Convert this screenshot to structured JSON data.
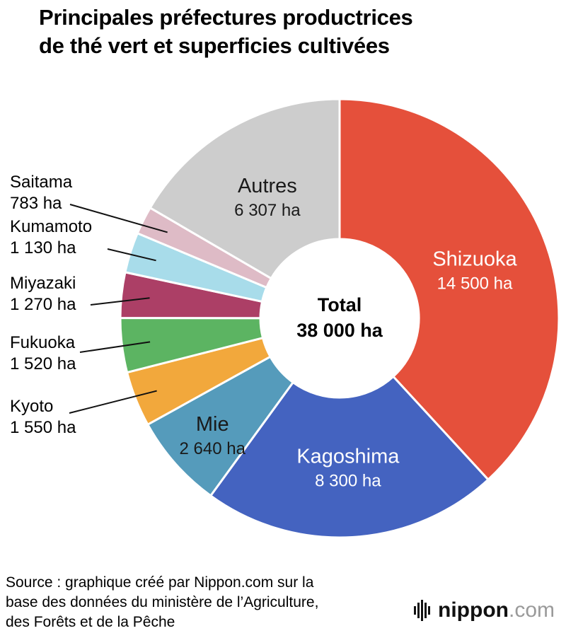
{
  "title_lines": [
    "Principales préfectures productrices",
    "de thé vert et superficies cultivées"
  ],
  "chart_data": {
    "type": "pie",
    "donut": true,
    "title": "Principales préfectures productrices de thé vert et superficies cultivées",
    "unit": "ha",
    "total": 38000,
    "total_label": "Total",
    "total_display": "38 000 ha",
    "start_angle_deg": 0,
    "direction": "clockwise",
    "segments": [
      {
        "name": "Shizuoka",
        "value": 14500,
        "display": "14 500 ha",
        "color": "#e5503b",
        "label_position": "inside",
        "label_color": "#ffffff"
      },
      {
        "name": "Kagoshima",
        "value": 8300,
        "display": "8 300 ha",
        "color": "#4463c0",
        "label_position": "inside",
        "label_color": "#ffffff"
      },
      {
        "name": "Mie",
        "value": 2640,
        "display": "2 640 ha",
        "color": "#559bbb",
        "label_position": "inside",
        "label_color": "#1a1a1a"
      },
      {
        "name": "Kyoto",
        "value": 1550,
        "display": "1 550 ha",
        "color": "#f2a83c",
        "label_position": "outside",
        "label_color": "#000000"
      },
      {
        "name": "Fukuoka",
        "value": 1520,
        "display": "1 520 ha",
        "color": "#5cb462",
        "label_position": "outside",
        "label_color": "#000000"
      },
      {
        "name": "Miyazaki",
        "value": 1270,
        "display": "1 270 ha",
        "color": "#ac3f66",
        "label_position": "outside",
        "label_color": "#000000"
      },
      {
        "name": "Kumamoto",
        "value": 1130,
        "display": "1 130 ha",
        "color": "#a8dcea",
        "label_position": "outside",
        "label_color": "#000000"
      },
      {
        "name": "Saitama",
        "value": 783,
        "display": "783 ha",
        "color": "#debbc6",
        "label_position": "outside",
        "label_color": "#000000"
      },
      {
        "name": "Autres",
        "value": 6307,
        "display": "6 307 ha",
        "color": "#cdcdcd",
        "label_position": "inside",
        "label_color": "#1a1a1a"
      }
    ]
  },
  "footer": {
    "source_lines": [
      "Source : graphique créé par Nippon.com sur la",
      "base des données du ministère de l’Agriculture,",
      "des Forêts et de la Pêche"
    ],
    "logo_text_bold": "nippon",
    "logo_text_light": ".com"
  }
}
